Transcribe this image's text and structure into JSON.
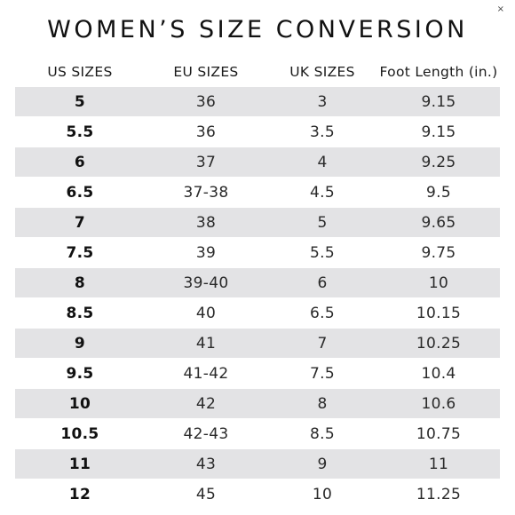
{
  "close_glyph": "×",
  "title": "WOMEN’S SIZE CONVERSION",
  "columns": [
    "US SIZES",
    "EU SIZES",
    "UK SIZES",
    "Foot Length (in.)"
  ],
  "rows": [
    {
      "us": "5",
      "eu": "36",
      "uk": "3",
      "foot": "9.15"
    },
    {
      "us": "5.5",
      "eu": "36",
      "uk": "3.5",
      "foot": "9.15"
    },
    {
      "us": "6",
      "eu": "37",
      "uk": "4",
      "foot": "9.25"
    },
    {
      "us": "6.5",
      "eu": "37-38",
      "uk": "4.5",
      "foot": "9.5"
    },
    {
      "us": "7",
      "eu": "38",
      "uk": "5",
      "foot": "9.65"
    },
    {
      "us": "7.5",
      "eu": "39",
      "uk": "5.5",
      "foot": "9.75"
    },
    {
      "us": "8",
      "eu": "39-40",
      "uk": "6",
      "foot": "10"
    },
    {
      "us": "8.5",
      "eu": "40",
      "uk": "6.5",
      "foot": "10.15"
    },
    {
      "us": "9",
      "eu": "41",
      "uk": "7",
      "foot": "10.25"
    },
    {
      "us": "9.5",
      "eu": "41-42",
      "uk": "7.5",
      "foot": "10.4"
    },
    {
      "us": "10",
      "eu": "42",
      "uk": "8",
      "foot": "10.6"
    },
    {
      "us": "10.5",
      "eu": "42-43",
      "uk": "8.5",
      "foot": "10.75"
    },
    {
      "us": "11",
      "eu": "43",
      "uk": "9",
      "foot": "11"
    },
    {
      "us": "12",
      "eu": "45",
      "uk": "10",
      "foot": "11.25"
    }
  ]
}
